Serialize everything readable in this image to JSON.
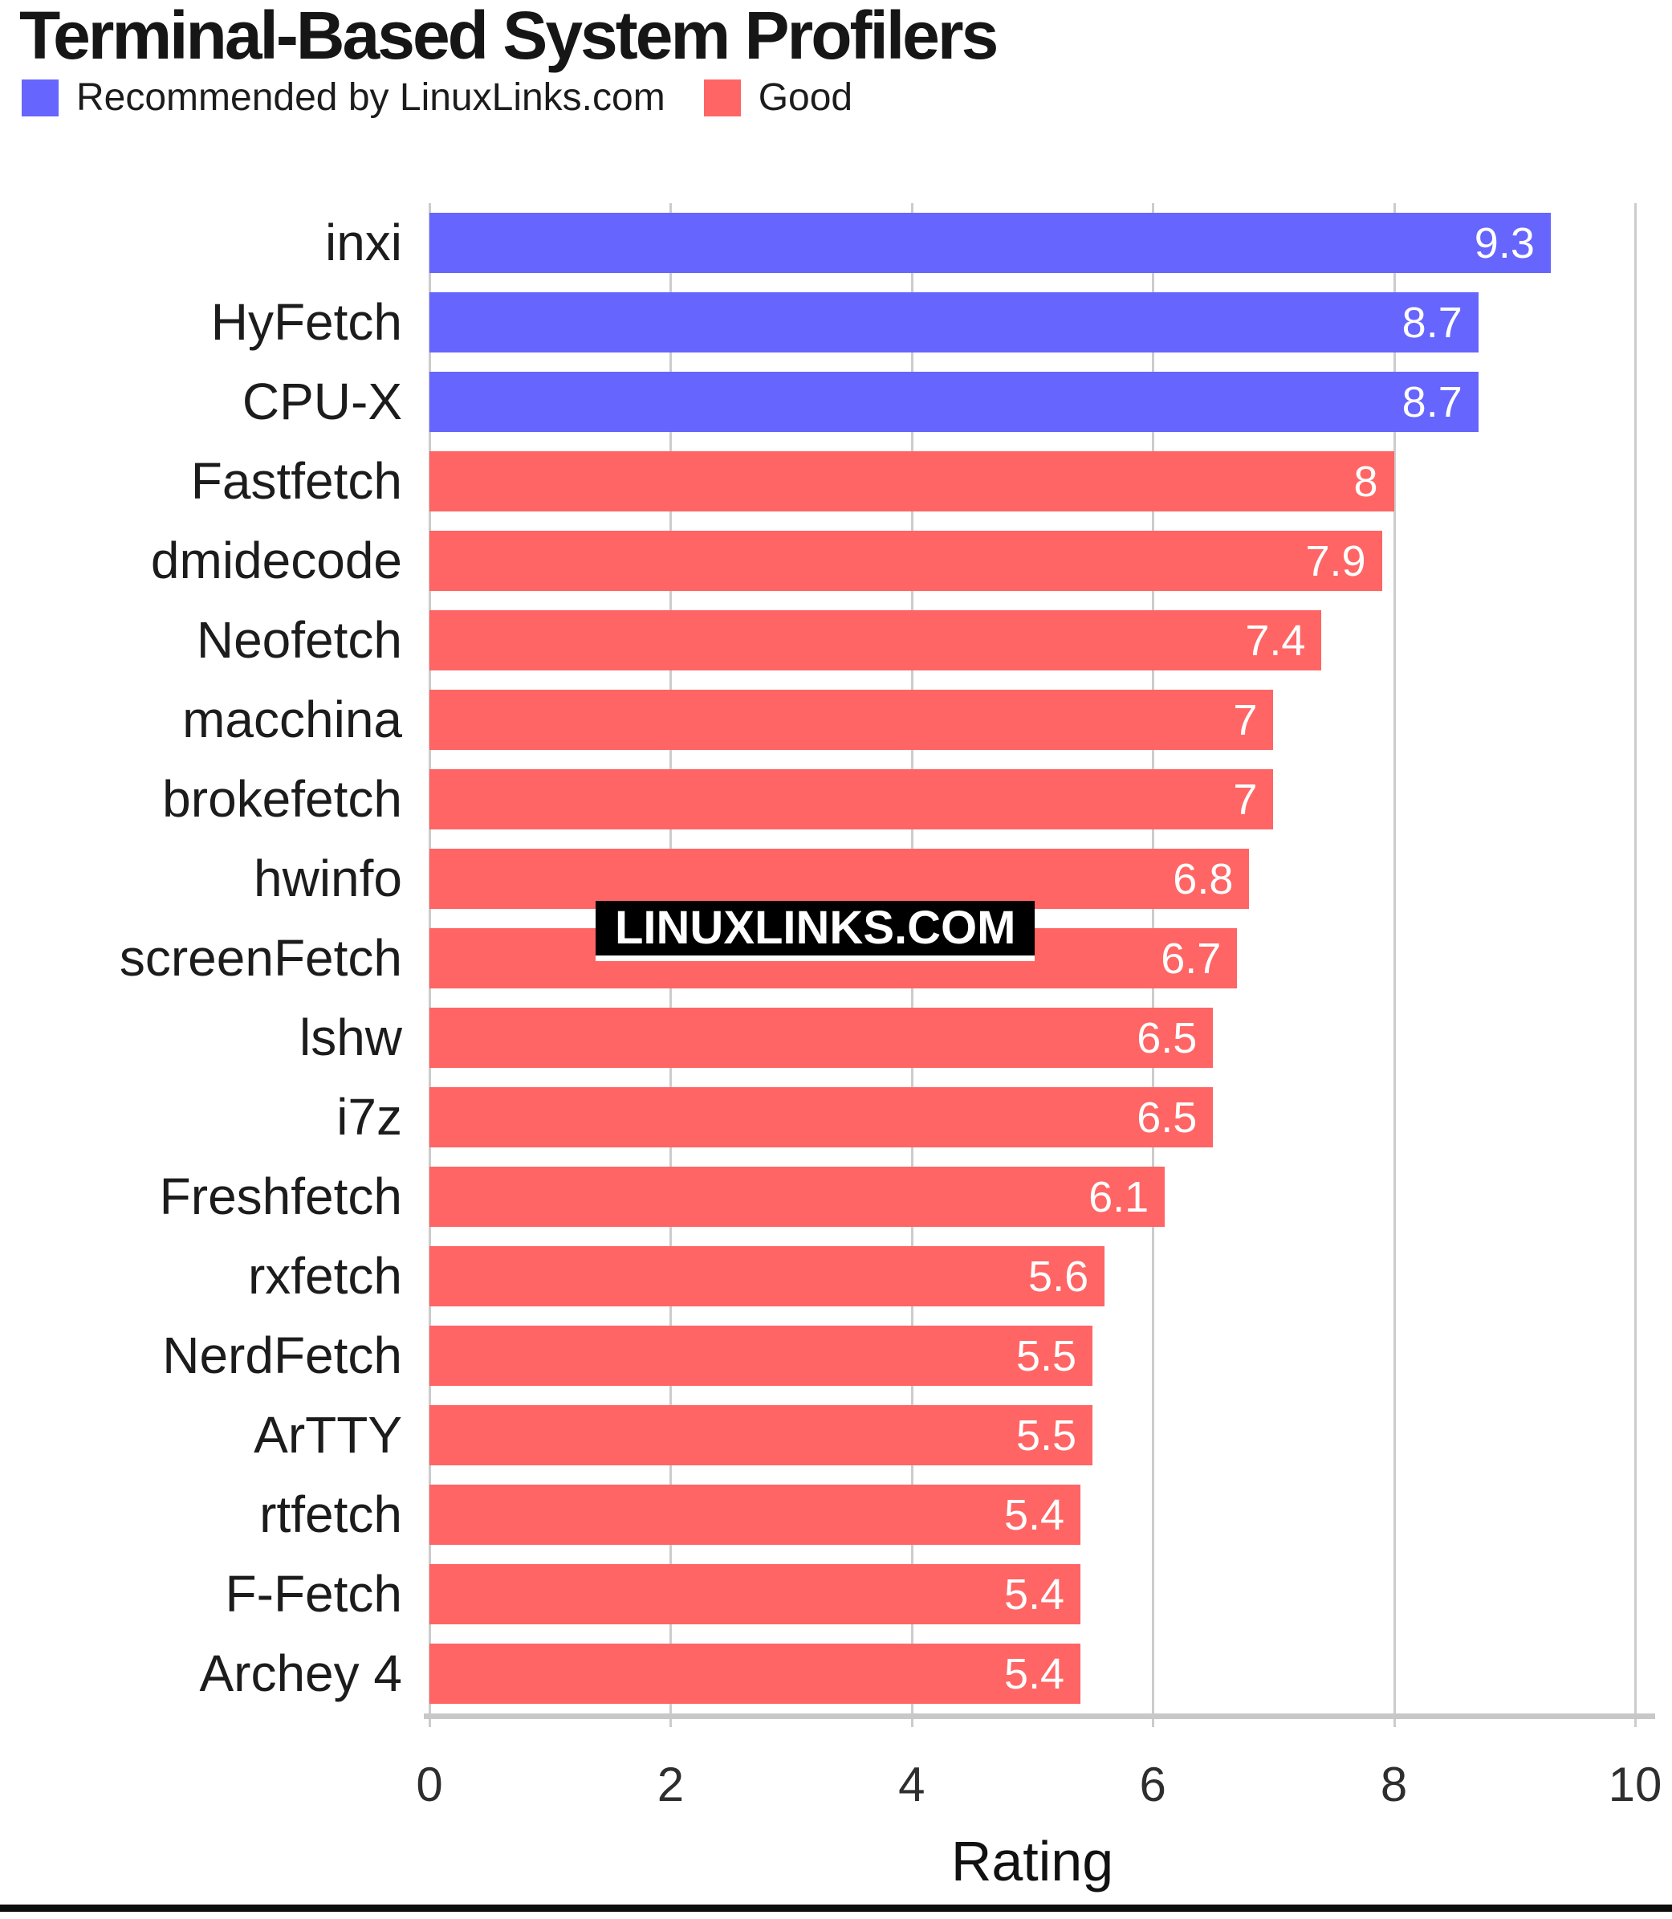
{
  "title": "Terminal-Based System Profilers",
  "legend": [
    {
      "label": "Recommended by LinuxLinks.com",
      "color": "#6665fd"
    },
    {
      "label": "Good",
      "color": "#ff6565"
    }
  ],
  "watermark": {
    "text": "LINUXLINKS.COM"
  },
  "chart_data": {
    "type": "bar",
    "orientation": "horizontal",
    "title": "Terminal-Based System Profilers",
    "xlabel": "Rating",
    "xlim": [
      0,
      10
    ],
    "xticks": [
      0,
      2,
      4,
      6,
      8,
      10
    ],
    "grid": true,
    "legend_position": "top-left",
    "categories": [
      "inxi",
      "HyFetch",
      "CPU-X",
      "Fastfetch",
      "dmidecode",
      "Neofetch",
      "macchina",
      "brokefetch",
      "hwinfo",
      "screenFetch",
      "lshw",
      "i7z",
      "Freshfetch",
      "rxfetch",
      "NerdFetch",
      "ArTTY",
      "rtfetch",
      "F-Fetch",
      "Archey 4"
    ],
    "values": [
      9.3,
      8.7,
      8.7,
      8,
      7.9,
      7.4,
      7,
      7,
      6.8,
      6.7,
      6.5,
      6.5,
      6.1,
      5.6,
      5.5,
      5.5,
      5.4,
      5.4,
      5.4
    ],
    "value_labels": [
      "9.3",
      "8.7",
      "8.7",
      "8",
      "7.9",
      "7.4",
      "7",
      "7",
      "6.8",
      "6.7",
      "6.5",
      "6.5",
      "6.1",
      "5.6",
      "5.5",
      "5.5",
      "5.4",
      "5.4",
      "5.4"
    ],
    "groups": [
      "recommended",
      "recommended",
      "recommended",
      "good",
      "good",
      "good",
      "good",
      "good",
      "good",
      "good",
      "good",
      "good",
      "good",
      "good",
      "good",
      "good",
      "good",
      "good",
      "good"
    ],
    "group_colors": {
      "recommended": "#6665fd",
      "good": "#ff6565"
    }
  }
}
